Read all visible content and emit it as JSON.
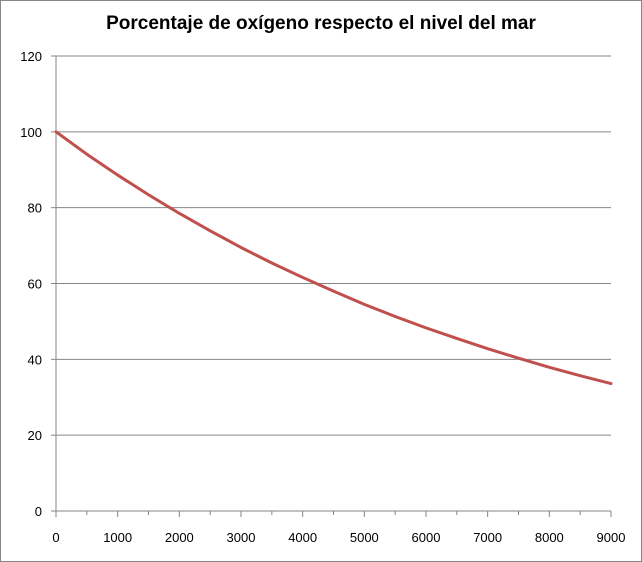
{
  "chart_data": {
    "type": "line",
    "title": "Porcentaje de oxígeno respecto el nivel del mar",
    "xlabel": "",
    "ylabel": "",
    "xlim": [
      0,
      9000
    ],
    "ylim": [
      0,
      120
    ],
    "x_ticks": [
      0,
      1000,
      2000,
      3000,
      4000,
      5000,
      6000,
      7000,
      8000,
      9000
    ],
    "y_ticks": [
      0,
      20,
      40,
      60,
      80,
      100,
      120
    ],
    "grid": "horizontal",
    "legend": "none",
    "series": [
      {
        "color": "#C0504D",
        "x": [
          0,
          500,
          1000,
          1500,
          2000,
          2500,
          3000,
          3500,
          4000,
          4500,
          5000,
          5500,
          6000,
          6500,
          7000,
          7500,
          8000,
          8500,
          9000
        ],
        "y": [
          100,
          94.1,
          88.6,
          83.4,
          78.5,
          73.9,
          69.5,
          65.4,
          61.6,
          58.0,
          54.5,
          51.3,
          48.3,
          45.5,
          42.8,
          40.3,
          37.9,
          35.7,
          33.6
        ]
      }
    ]
  }
}
